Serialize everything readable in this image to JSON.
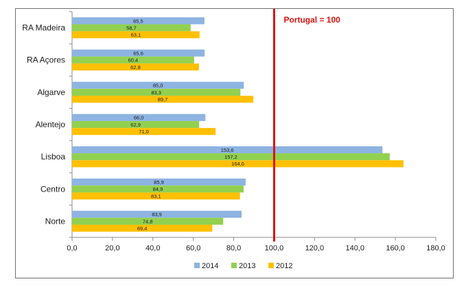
{
  "chart_data": {
    "type": "bar",
    "orientation": "horizontal",
    "categories": [
      "RA Madeira",
      "RA Açores",
      "Algarve",
      "Alentejo",
      "Lisboa",
      "Centro",
      "Norte"
    ],
    "series": [
      {
        "name": "2014",
        "color": "#8db4e2",
        "values": [
          65.5,
          65.6,
          85.0,
          66.0,
          153.6,
          85.9,
          83.9
        ],
        "labels": [
          "65,5",
          "65,6",
          "85,0",
          "66,0",
          "153,6",
          "85,9",
          "83,9"
        ]
      },
      {
        "name": "2013",
        "color": "#92d050",
        "values": [
          58.7,
          60.4,
          83.3,
          62.9,
          157.2,
          84.9,
          74.8
        ],
        "labels": [
          "58,7",
          "60,4",
          "83,3",
          "62,9",
          "157,2",
          "84,9",
          "74,8"
        ]
      },
      {
        "name": "2012",
        "color": "#ffc000",
        "values": [
          63.1,
          62.8,
          89.7,
          71.0,
          164.0,
          83.1,
          69.4
        ],
        "labels": [
          "63,1",
          "62,8",
          "89,7",
          "71,0",
          "164,0",
          "83,1",
          "69,4"
        ]
      }
    ],
    "xlim": [
      0,
      180
    ],
    "x_ticks": [
      0,
      20,
      40,
      60,
      80,
      100,
      120,
      140,
      160,
      180
    ],
    "x_tick_labels": [
      "0,0",
      "20,0",
      "40,0",
      "60,0",
      "80,0",
      "100,0",
      "120,0",
      "140,0",
      "160,0",
      "180,0"
    ],
    "reference_line": {
      "value": 100,
      "label": "Portugal = 100",
      "color": "#dd1111"
    },
    "legend_position": "bottom",
    "grid": false,
    "title": "",
    "xlabel": "",
    "ylabel": ""
  }
}
